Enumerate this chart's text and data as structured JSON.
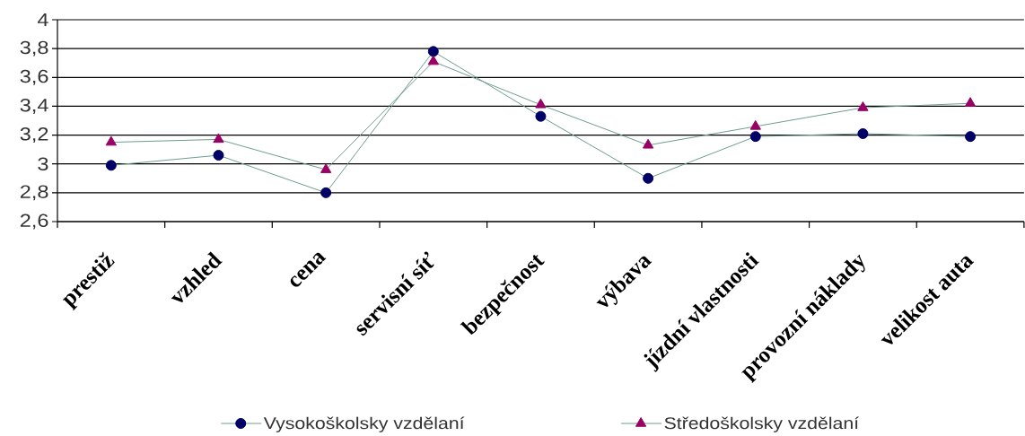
{
  "chart_data": {
    "type": "line",
    "categories": [
      "prestiž",
      "vzhled",
      "cena",
      "servisní síť",
      "bezpečnost",
      "výbava",
      "jízdní vlastnosti",
      "provozní náklady",
      "velikost auta"
    ],
    "series": [
      {
        "name": "Vysokoškolsky vzdělaní",
        "color": "#000066",
        "marker": "circle",
        "values": [
          2.99,
          3.06,
          2.8,
          3.78,
          3.33,
          2.9,
          3.19,
          3.21,
          3.19
        ]
      },
      {
        "name": "Středoškolsky vzdělaní",
        "color": "#990066",
        "marker": "triangle",
        "values": [
          3.15,
          3.17,
          2.96,
          3.71,
          3.41,
          3.13,
          3.26,
          3.39,
          3.42
        ]
      }
    ],
    "ylim": [
      2.6,
      4
    ],
    "yticks": [
      {
        "value": 2.6,
        "label": "2,6"
      },
      {
        "value": 2.8,
        "label": "2,8"
      },
      3,
      {
        "value": 3.2,
        "label": "3,2"
      },
      {
        "value": 3.4,
        "label": "3,4"
      },
      {
        "value": 3.6,
        "label": "3,6"
      },
      {
        "value": 3.8,
        "label": "3,8"
      },
      4
    ],
    "grid": "y",
    "legend": "bottom",
    "line_style": "solid"
  }
}
